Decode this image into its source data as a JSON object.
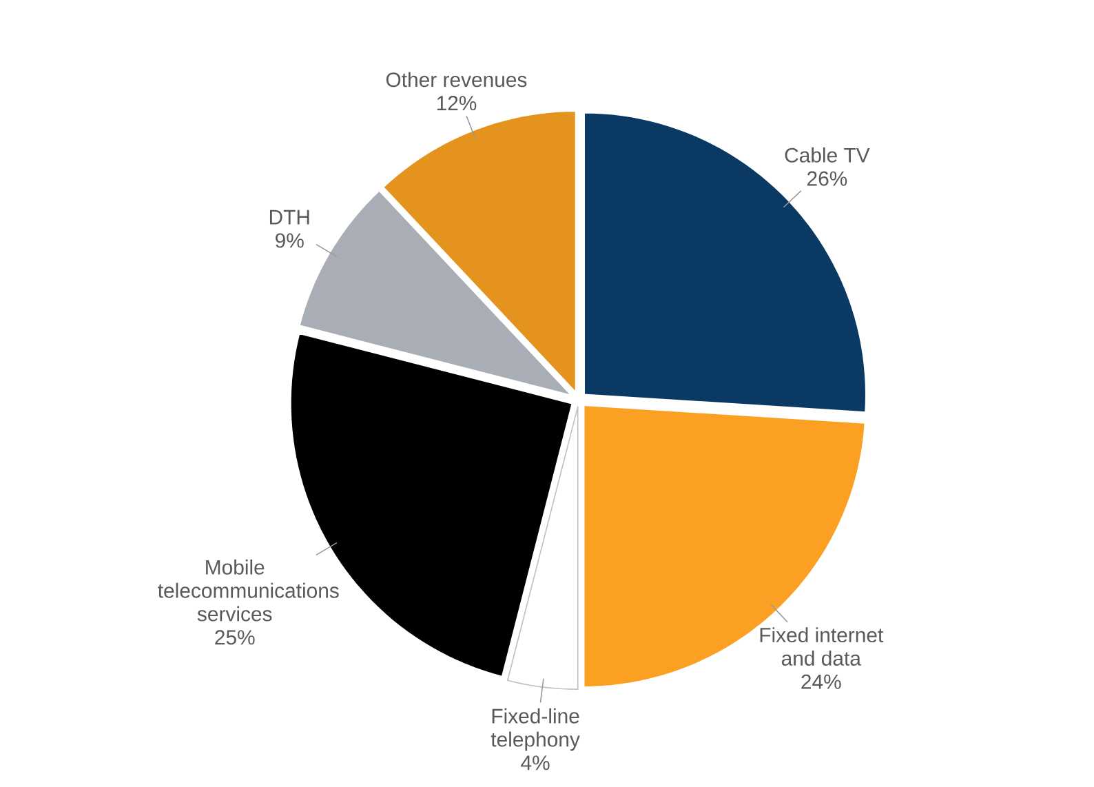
{
  "chart_data": {
    "type": "pie",
    "categories": [
      "Cable TV",
      "Fixed internet and data",
      "Fixed-line telephony",
      "Mobile telecommunications services",
      "DTH",
      "Other revenues"
    ],
    "values": [
      26,
      24,
      4,
      25,
      9,
      12
    ],
    "value_labels": [
      "26%",
      "24%",
      "4%",
      "25%",
      "9%",
      "12%"
    ],
    "colors": [
      "#0a3a63",
      "#fba022",
      "#ffffff",
      "#000000",
      "#a9adb5",
      "#e5931f"
    ]
  }
}
